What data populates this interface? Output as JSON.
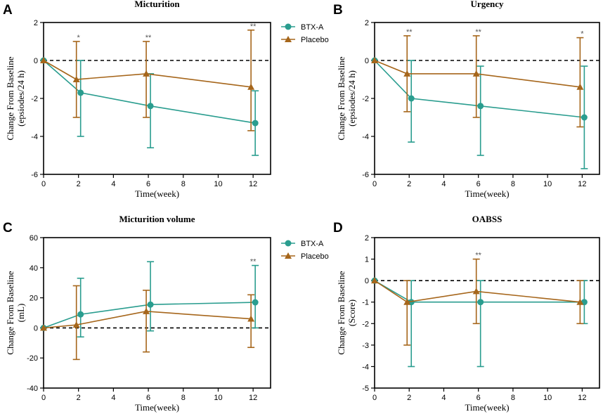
{
  "colors": {
    "btx": "#2a9d8f",
    "placebo": "#a6661b",
    "axis": "#000000",
    "sig": "#555555"
  },
  "legend": {
    "btx_label": "BTX-A",
    "placebo_label": "Placebo"
  },
  "chart_data": [
    {
      "id": "A",
      "letter": "A",
      "type": "line",
      "title": "Micturition",
      "xlabel": "Time(week)",
      "ylabel": [
        "Change From Baseline",
        "(epsiodes/24 h)"
      ],
      "xlim": [
        0,
        13
      ],
      "ylim": [
        -6,
        2
      ],
      "xticks": [
        0,
        2,
        4,
        6,
        8,
        10,
        12
      ],
      "yticks": [
        -6,
        -4,
        -2,
        0,
        2
      ],
      "x": [
        0,
        2,
        6,
        12
      ],
      "series": [
        {
          "name": "BTX-A",
          "values": [
            0,
            -1.7,
            -2.4,
            -3.3
          ],
          "err_low": [
            0,
            -4.0,
            -4.6,
            -5.0
          ],
          "err_high": [
            0,
            0,
            -0.7,
            -1.6
          ]
        },
        {
          "name": "Placebo",
          "values": [
            0,
            -1.0,
            -0.7,
            -1.4
          ],
          "err_low": [
            0,
            -3.0,
            -3.0,
            -3.7
          ],
          "err_high": [
            0,
            1.0,
            1.0,
            1.6
          ]
        }
      ],
      "significance": [
        {
          "x": 2,
          "label": "*"
        },
        {
          "x": 6,
          "label": "**"
        },
        {
          "x": 12,
          "label": "**"
        }
      ],
      "show_legend": true
    },
    {
      "id": "B",
      "letter": "B",
      "type": "line",
      "title": "Urgency",
      "xlabel": "Time(week)",
      "ylabel": [
        "Change From Baseline",
        "(epsiodes/24 h)"
      ],
      "xlim": [
        0,
        13
      ],
      "ylim": [
        -6,
        2
      ],
      "xticks": [
        0,
        2,
        4,
        6,
        8,
        10,
        12
      ],
      "yticks": [
        -6,
        -4,
        -2,
        0,
        2
      ],
      "x": [
        0,
        2,
        6,
        12
      ],
      "series": [
        {
          "name": "BTX-A",
          "values": [
            0,
            -2.0,
            -2.4,
            -3.0
          ],
          "err_low": [
            0,
            -4.3,
            -5.0,
            -5.7
          ],
          "err_high": [
            0,
            0,
            -0.3,
            -0.3
          ]
        },
        {
          "name": "Placebo",
          "values": [
            0,
            -0.7,
            -0.7,
            -1.4
          ],
          "err_low": [
            0,
            -2.7,
            -3.0,
            -3.5
          ],
          "err_high": [
            0,
            1.3,
            1.3,
            1.2
          ]
        }
      ],
      "significance": [
        {
          "x": 2,
          "label": "**"
        },
        {
          "x": 6,
          "label": "**"
        },
        {
          "x": 12,
          "label": "*"
        }
      ],
      "show_legend": false
    },
    {
      "id": "C",
      "letter": "C",
      "type": "line",
      "title": "Micturition volume",
      "xlabel": "Time(week)",
      "ylabel": [
        "Change From Baseline",
        "(mL)"
      ],
      "xlim": [
        0,
        13
      ],
      "ylim": [
        -40,
        60
      ],
      "xticks": [
        0,
        2,
        4,
        6,
        8,
        10,
        12
      ],
      "yticks": [
        -40,
        -20,
        0,
        20,
        40,
        60
      ],
      "x": [
        0,
        2,
        6,
        12
      ],
      "series": [
        {
          "name": "BTX-A",
          "values": [
            0,
            9,
            15.5,
            17
          ],
          "err_low": [
            0,
            -6,
            -2,
            0
          ],
          "err_high": [
            0,
            33,
            44,
            41.5
          ]
        },
        {
          "name": "Placebo",
          "values": [
            0,
            2,
            11,
            6
          ],
          "err_low": [
            0,
            -21,
            -16,
            -13
          ],
          "err_high": [
            0,
            28,
            25,
            22
          ]
        }
      ],
      "significance": [
        {
          "x": 12,
          "label": "**"
        }
      ],
      "show_legend": true
    },
    {
      "id": "D",
      "letter": "D",
      "type": "line",
      "title": "OABSS",
      "xlabel": "Time(week)",
      "ylabel": [
        "Change From Baseline",
        "(Score)"
      ],
      "xlim": [
        0,
        13
      ],
      "ylim": [
        -5,
        2
      ],
      "xticks": [
        0,
        2,
        4,
        6,
        8,
        10,
        12
      ],
      "yticks": [
        -5,
        -4,
        -3,
        -2,
        -1,
        0,
        1,
        2
      ],
      "x": [
        0,
        2,
        6,
        12
      ],
      "series": [
        {
          "name": "BTX-A",
          "values": [
            0,
            -1,
            -1,
            -1
          ],
          "err_low": [
            0,
            -4,
            -4,
            -2
          ],
          "err_high": [
            0,
            0,
            0,
            0
          ]
        },
        {
          "name": "Placebo",
          "values": [
            0,
            -1,
            -0.5,
            -1
          ],
          "err_low": [
            0,
            -3,
            -2,
            -2
          ],
          "err_high": [
            0,
            0,
            1,
            0
          ]
        }
      ],
      "significance": [
        {
          "x": 6,
          "label": "**"
        }
      ],
      "show_legend": false
    }
  ]
}
